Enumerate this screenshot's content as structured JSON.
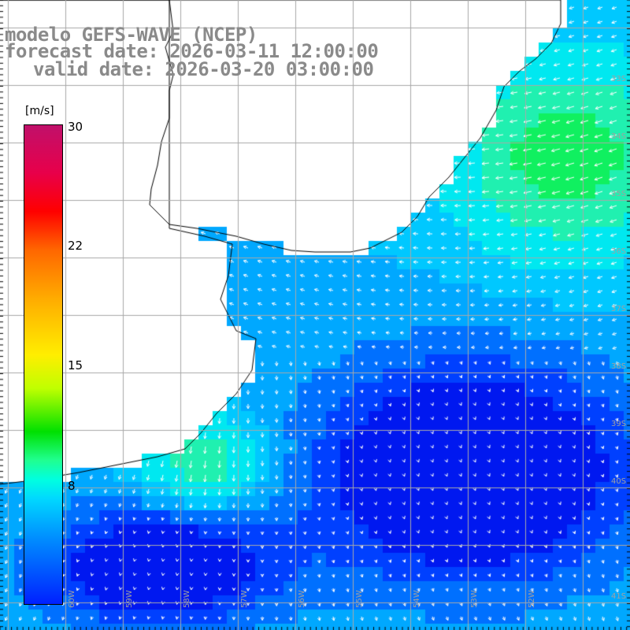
{
  "title": {
    "line1": "modelo GEFS-WAVE (NCEP)",
    "line2": "forecast date: 2026-03-11 12:00:00",
    "line3": "valid date: 2026-03-20 03:00:00"
  },
  "legend": {
    "unit": "[m/s]",
    "ticks": [
      {
        "label": "30",
        "value": 30
      },
      {
        "label": "22",
        "value": 22
      },
      {
        "label": "15",
        "value": 15
      },
      {
        "label": "8",
        "value": 8
      }
    ],
    "range": [
      0,
      30
    ]
  },
  "lat_labels": [
    "33S",
    "34S",
    "35S",
    "36S",
    "37S",
    "38S",
    "39S",
    "40S",
    "41S"
  ],
  "lon_labels": [
    "60W",
    "59W",
    "58W",
    "57W",
    "56W",
    "55W",
    "54W",
    "53W",
    "52W"
  ],
  "colors": {
    "land": "#ffffff",
    "coast": "#000000",
    "grid": "#a8a8a8",
    "arrow": "#ffffff",
    "low_wind": "#0010f0",
    "mid_wind": "#00b8ff",
    "high_wind": "#00e060"
  }
}
